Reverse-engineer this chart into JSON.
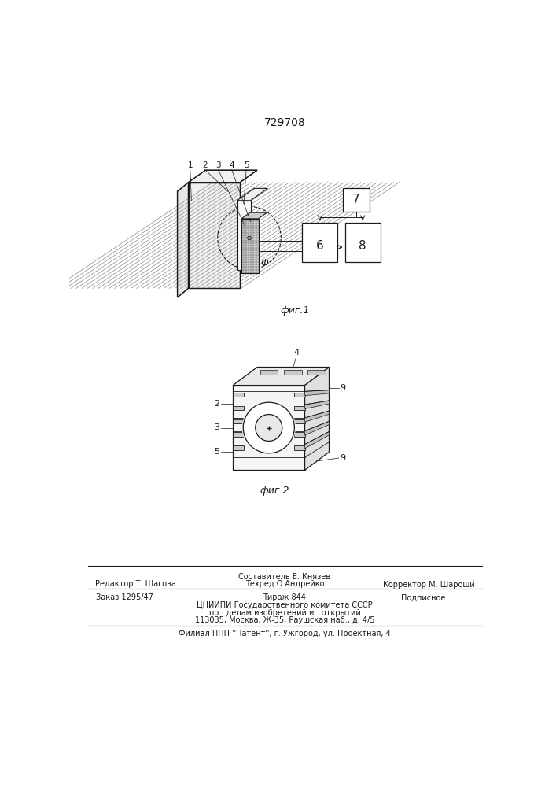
{
  "patent_number": "729708",
  "fig1_caption": "фиг.1",
  "fig2_caption": "фиг.2",
  "footer_line1_left": "Редактор Т. Шагова",
  "footer_line1_center_top": "Составитель Е. Князев",
  "footer_line1_center": "Техред О.Андрейко",
  "footer_line1_right": "Корректор М. Шароши́",
  "footer_line2_left": "Заказ 1295/47",
  "footer_line2_center": "Тираж 844",
  "footer_line2_right": "Подписное",
  "footer_line3": "ЦНИИПИ Государственного комитета СССР",
  "footer_line4": "по   делам изобретений и   открытий",
  "footer_line5": "113035, Москва, Ж-35, Раушская наб., д. 4/5",
  "footer_last": "Филиал ППП ''Патент'', г. Ужгород, ул. Проектная, 4",
  "bg_color": "#ffffff",
  "line_color": "#1a1a1a"
}
